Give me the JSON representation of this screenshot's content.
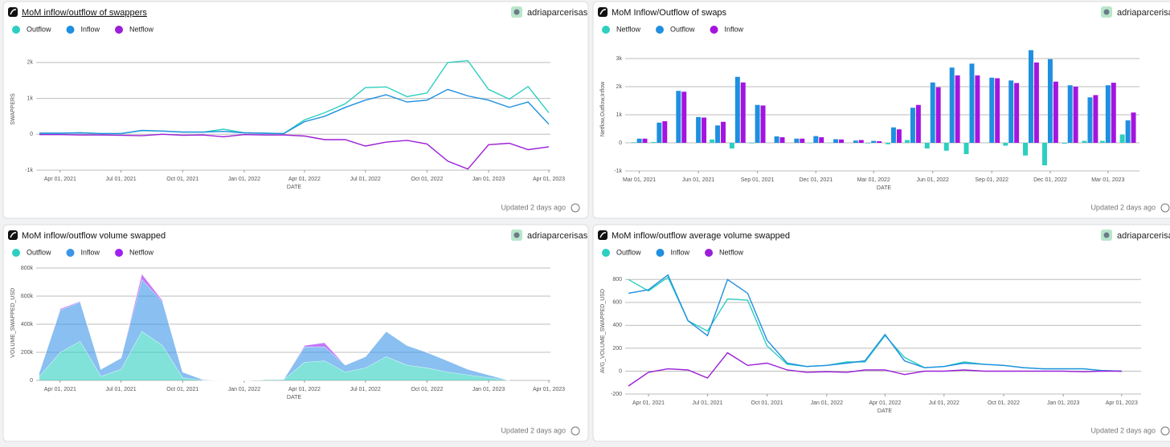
{
  "chart_data": [
    {
      "type": "line",
      "title": "MoM inflow/outflow of swappers",
      "y_label": "SWAPPERS",
      "x_label": "DATE",
      "x": [
        "2021-03-01",
        "2021-04-01",
        "2021-05-01",
        "2021-06-01",
        "2021-07-01",
        "2021-08-01",
        "2021-09-01",
        "2021-10-01",
        "2021-11-01",
        "2021-12-01",
        "2022-01-01",
        "2022-02-01",
        "2022-03-01",
        "2022-04-01",
        "2022-05-01",
        "2022-06-01",
        "2022-07-01",
        "2022-08-01",
        "2022-09-01",
        "2022-10-01",
        "2022-11-01",
        "2022-12-01",
        "2023-01-01",
        "2023-02-01",
        "2023-03-01",
        "2023-04-01"
      ],
      "series": [
        {
          "name": "Outflow",
          "color": "#2ccfc0",
          "values": [
            30,
            30,
            40,
            20,
            20,
            100,
            90,
            60,
            60,
            140,
            40,
            30,
            20,
            400,
            600,
            850,
            1300,
            1320,
            1050,
            1150,
            2000,
            2050,
            1250,
            980,
            1330,
            600
          ]
        },
        {
          "name": "Inflow",
          "color": "#1f8fe0",
          "values": [
            30,
            30,
            40,
            20,
            20,
            110,
            90,
            60,
            60,
            80,
            40,
            30,
            20,
            350,
            500,
            750,
            950,
            1100,
            900,
            950,
            1250,
            1070,
            950,
            750,
            900,
            280
          ]
        },
        {
          "name": "Netflow",
          "color": "#9b1fd6",
          "values": [
            -10,
            -10,
            -20,
            -20,
            -30,
            -40,
            0,
            -30,
            -20,
            -70,
            -10,
            -20,
            -20,
            -50,
            -150,
            -150,
            -330,
            -220,
            -170,
            -270,
            -750,
            -970,
            -290,
            -250,
            -430,
            -350
          ]
        }
      ],
      "xlim": [
        "2021-03-01",
        "2023-04-01"
      ],
      "xticks": [
        {
          "value": "2021-04-01",
          "label": "Apr 01, 2021"
        },
        {
          "value": "2021-07-01",
          "label": "Jul 01, 2021"
        },
        {
          "value": "2021-10-01",
          "label": "Oct 01, 2021"
        },
        {
          "value": "2022-01-01",
          "label": "Jan 01, 2022"
        },
        {
          "value": "2022-04-01",
          "label": "Apr 01, 2022"
        },
        {
          "value": "2022-07-01",
          "label": "Jul 01, 2022"
        },
        {
          "value": "2022-10-01",
          "label": "Oct 01, 2022"
        },
        {
          "value": "2023-01-01",
          "label": "Jan 01, 2023"
        },
        {
          "value": "2023-04-01",
          "label": "Apr 01, 2023"
        }
      ],
      "ylim": [
        -1000,
        2400
      ],
      "yticks": [
        {
          "value": -1000,
          "label": "-1k"
        },
        0,
        {
          "value": 1000,
          "label": "1k"
        },
        {
          "value": 2000,
          "label": "2k"
        }
      ],
      "grid": true
    },
    {
      "type": "bar",
      "title": "MoM Inflow/Outflow of swaps",
      "y_label": "Netflow,Outflow,Inflow",
      "x_label": "DATE",
      "x": [
        "2021-03-01",
        "2021-04-01",
        "2021-05-01",
        "2021-06-01",
        "2021-07-01",
        "2021-08-01",
        "2021-09-01",
        "2021-10-01",
        "2021-11-01",
        "2021-12-01",
        "2022-01-01",
        "2022-02-01",
        "2022-03-01",
        "2022-04-01",
        "2022-05-01",
        "2022-06-01",
        "2022-07-01",
        "2022-08-01",
        "2022-09-01",
        "2022-10-01",
        "2022-11-01",
        "2022-12-01",
        "2023-01-01",
        "2023-02-01",
        "2023-03-01",
        "2023-04-01"
      ],
      "series": [
        {
          "name": "Netflow",
          "color": "#2ccfc0",
          "values": [
            20,
            30,
            0,
            0,
            120,
            -200,
            -20,
            0,
            0,
            -10,
            10,
            0,
            -20,
            -50,
            100,
            -200,
            -280,
            -400,
            0,
            -100,
            -450,
            -800,
            -30,
            70,
            70,
            300
          ]
        },
        {
          "name": "Outflow",
          "color": "#1f8fe0",
          "values": [
            150,
            720,
            1850,
            920,
            620,
            2350,
            1350,
            230,
            150,
            240,
            130,
            80,
            70,
            550,
            1250,
            2150,
            2680,
            2820,
            2320,
            2220,
            3300,
            2980,
            2050,
            1620,
            2050,
            800
          ]
        },
        {
          "name": "Inflow",
          "color": "#a414e0",
          "values": [
            150,
            770,
            1820,
            900,
            750,
            2150,
            1330,
            200,
            150,
            200,
            120,
            100,
            60,
            480,
            1350,
            1980,
            2400,
            2400,
            2300,
            2130,
            2860,
            2180,
            2000,
            1700,
            2140,
            1080
          ]
        }
      ],
      "xlim": [
        "2021-02-12",
        "2023-04-19"
      ],
      "xticks": [
        {
          "value": "2021-03-01",
          "label": "Mar 01, 2021"
        },
        {
          "value": "2021-06-01",
          "label": "Jun 01, 2021"
        },
        {
          "value": "2021-09-01",
          "label": "Sep 01, 2021"
        },
        {
          "value": "2021-12-01",
          "label": "Dec 01, 2021"
        },
        {
          "value": "2022-03-01",
          "label": "Mar 01, 2022"
        },
        {
          "value": "2022-06-01",
          "label": "Jun 01, 2022"
        },
        {
          "value": "2022-09-01",
          "label": "Sep 01, 2022"
        },
        {
          "value": "2022-12-01",
          "label": "Dec 01, 2022"
        },
        {
          "value": "2023-03-01",
          "label": "Mar 01, 2023"
        }
      ],
      "ylim": [
        -1000,
        3400
      ],
      "yticks": [
        {
          "value": -1000,
          "label": "-1k"
        },
        0,
        {
          "value": 1000,
          "label": "1k"
        },
        {
          "value": 2000,
          "label": "2k"
        },
        {
          "value": 3000,
          "label": "3k"
        }
      ],
      "grid": true
    },
    {
      "type": "area",
      "stacked": true,
      "title": "MoM inflow/outflow volume swapped",
      "y_label": "VOLUME_SWAPPED_USD",
      "x_label": "DATE",
      "x": [
        "2021-03-01",
        "2021-04-01",
        "2021-05-01",
        "2021-06-01",
        "2021-07-01",
        "2021-08-01",
        "2021-09-01",
        "2021-10-01",
        "2021-11-01",
        "2021-12-01",
        "2022-01-01",
        "2022-02-01",
        "2022-03-01",
        "2022-04-01",
        "2022-05-01",
        "2022-06-01",
        "2022-07-01",
        "2022-08-01",
        "2022-09-01",
        "2022-10-01",
        "2022-11-01",
        "2022-12-01",
        "2023-01-01",
        "2023-02-01"
      ],
      "series": [
        {
          "name": "Outflow",
          "color": "#2ccfc0",
          "values": [
            30000,
            200000,
            280000,
            30000,
            80000,
            350000,
            250000,
            20000,
            0,
            0,
            0,
            5000,
            5000,
            130000,
            140000,
            60000,
            90000,
            170000,
            110000,
            90000,
            60000,
            40000,
            20000,
            0
          ]
        },
        {
          "name": "Inflow",
          "color": "#3b94e8",
          "values": [
            30000,
            300000,
            280000,
            50000,
            80000,
            370000,
            310000,
            40000,
            5000,
            0,
            0,
            0,
            5000,
            110000,
            100000,
            50000,
            80000,
            180000,
            140000,
            110000,
            80000,
            40000,
            20000,
            0
          ]
        },
        {
          "name": "Netflow",
          "color": "#a020f0",
          "values": [
            0,
            10000,
            5000,
            0,
            0,
            40000,
            10000,
            0,
            0,
            0,
            0,
            0,
            0,
            10000,
            30000,
            0,
            0,
            0,
            0,
            0,
            0,
            0,
            0,
            0
          ]
        }
      ],
      "xlim": [
        "2021-03-01",
        "2023-04-01"
      ],
      "xticks": [
        {
          "value": "2021-04-01",
          "label": "Apr 01, 2021"
        },
        {
          "value": "2021-07-01",
          "label": "Jul 01, 2021"
        },
        {
          "value": "2021-10-01",
          "label": "Oct 01, 2021"
        },
        {
          "value": "2022-01-01",
          "label": "Jan 01, 2022"
        },
        {
          "value": "2022-04-01",
          "label": "Apr 01, 2022"
        },
        {
          "value": "2022-07-01",
          "label": "Jul 01, 2022"
        },
        {
          "value": "2022-10-01",
          "label": "Oct 01, 2022"
        },
        {
          "value": "2023-01-01",
          "label": "Jan 01, 2023"
        },
        {
          "value": "2023-04-01",
          "label": "Apr 01, 2023"
        }
      ],
      "ylim": [
        0,
        820000
      ],
      "yticks": [
        0,
        {
          "value": 200000,
          "label": "200k"
        },
        {
          "value": 400000,
          "label": "400k"
        },
        {
          "value": 600000,
          "label": "600k"
        },
        {
          "value": 800000,
          "label": "800k"
        }
      ],
      "grid": true
    },
    {
      "type": "line",
      "title": "MoM inflow/outflow average volume swapped",
      "y_label": "AVG_VOLUME_SWAPPED_USD",
      "x_label": "DATE",
      "x": [
        "2021-03-01",
        "2021-04-01",
        "2021-05-01",
        "2021-06-01",
        "2021-07-01",
        "2021-08-01",
        "2021-09-01",
        "2021-10-01",
        "2021-11-01",
        "2021-12-01",
        "2022-01-01",
        "2022-02-01",
        "2022-03-01",
        "2022-04-01",
        "2022-05-01",
        "2022-06-01",
        "2022-07-01",
        "2022-08-01",
        "2022-09-01",
        "2022-10-01",
        "2022-11-01",
        "2022-12-01",
        "2023-01-01",
        "2023-02-01",
        "2023-03-01",
        "2023-04-01"
      ],
      "series": [
        {
          "name": "Outflow",
          "color": "#2ccfc0",
          "values": [
            800,
            700,
            820,
            440,
            350,
            630,
            620,
            220,
            60,
            40,
            50,
            80,
            80,
            310,
            120,
            30,
            40,
            80,
            60,
            50,
            30,
            20,
            20,
            20,
            5,
            0
          ]
        },
        {
          "name": "Inflow",
          "color": "#1f8fe0",
          "values": [
            680,
            710,
            840,
            440,
            310,
            800,
            680,
            270,
            70,
            40,
            50,
            70,
            90,
            320,
            90,
            30,
            40,
            70,
            60,
            50,
            30,
            20,
            20,
            20,
            5,
            0
          ]
        },
        {
          "name": "Netflow",
          "color": "#9b1fd6",
          "values": [
            -130,
            -10,
            20,
            10,
            -60,
            160,
            50,
            70,
            10,
            -10,
            -5,
            -10,
            10,
            10,
            -30,
            0,
            0,
            10,
            0,
            0,
            0,
            0,
            0,
            -5,
            0,
            0
          ]
        }
      ],
      "xlim": [
        "2021-03-01",
        "2023-05-01"
      ],
      "xticks": [
        {
          "value": "2021-04-01",
          "label": "Apr 01, 2021"
        },
        {
          "value": "2021-07-01",
          "label": "Jul 01, 2021"
        },
        {
          "value": "2021-10-01",
          "label": "Oct 01, 2021"
        },
        {
          "value": "2022-01-01",
          "label": "Jan 01, 2022"
        },
        {
          "value": "2022-04-01",
          "label": "Apr 01, 2022"
        },
        {
          "value": "2022-07-01",
          "label": "Jul 01, 2022"
        },
        {
          "value": "2022-10-01",
          "label": "Oct 01, 2022"
        },
        {
          "value": "2023-01-01",
          "label": "Jan 01, 2023"
        },
        {
          "value": "2023-04-01",
          "label": "Apr 01, 2023"
        }
      ],
      "ylim": [
        -200,
        900
      ],
      "yticks": [
        -200,
        0,
        200,
        400,
        600,
        800
      ],
      "grid": true
    }
  ],
  "panels": [
    {
      "author": "adriaparcerisas",
      "footer": "Updated 2 days ago"
    },
    {
      "author": "adriaparcerisas",
      "footer": "Updated 2 days ago"
    },
    {
      "author": "adriaparcerisas",
      "footer": "Updated 2 days ago"
    },
    {
      "author": "adriaparcerisas",
      "footer": "Updated 2 days ago"
    }
  ]
}
